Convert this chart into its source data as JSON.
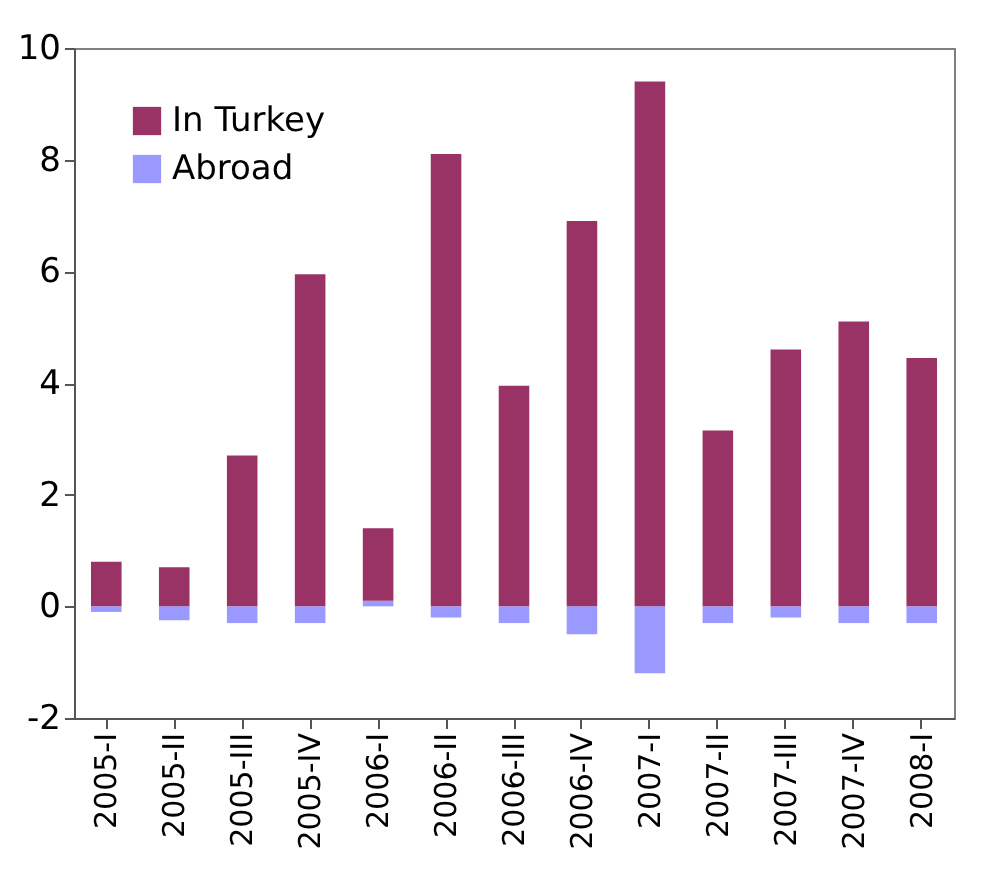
{
  "chart_data": {
    "type": "bar",
    "stacked": true,
    "categories": [
      "2005-I",
      "2005-II",
      "2005-III",
      "2005-IV",
      "2006-I",
      "2006-II",
      "2006-III",
      "2006-IV",
      "2007-I",
      "2007-II",
      "2007-III",
      "2007-IV",
      "2008-I"
    ],
    "series": [
      {
        "name": "Abroad",
        "color": "#9999ff",
        "values": [
          -0.1,
          -0.25,
          -0.3,
          -0.3,
          0.1,
          -0.2,
          -0.3,
          -0.5,
          -1.2,
          -0.3,
          -0.2,
          -0.3,
          -0.3
        ]
      },
      {
        "name": "In Turkey",
        "color": "#993366",
        "values": [
          0.8,
          0.7,
          2.7,
          5.95,
          1.3,
          8.1,
          3.95,
          6.9,
          9.4,
          3.15,
          4.6,
          5.1,
          4.45
        ]
      }
    ],
    "ylim": [
      -2,
      10
    ],
    "yticks": [
      -2,
      0,
      2,
      4,
      6,
      8,
      10
    ],
    "grid": false,
    "legend": "top left"
  }
}
